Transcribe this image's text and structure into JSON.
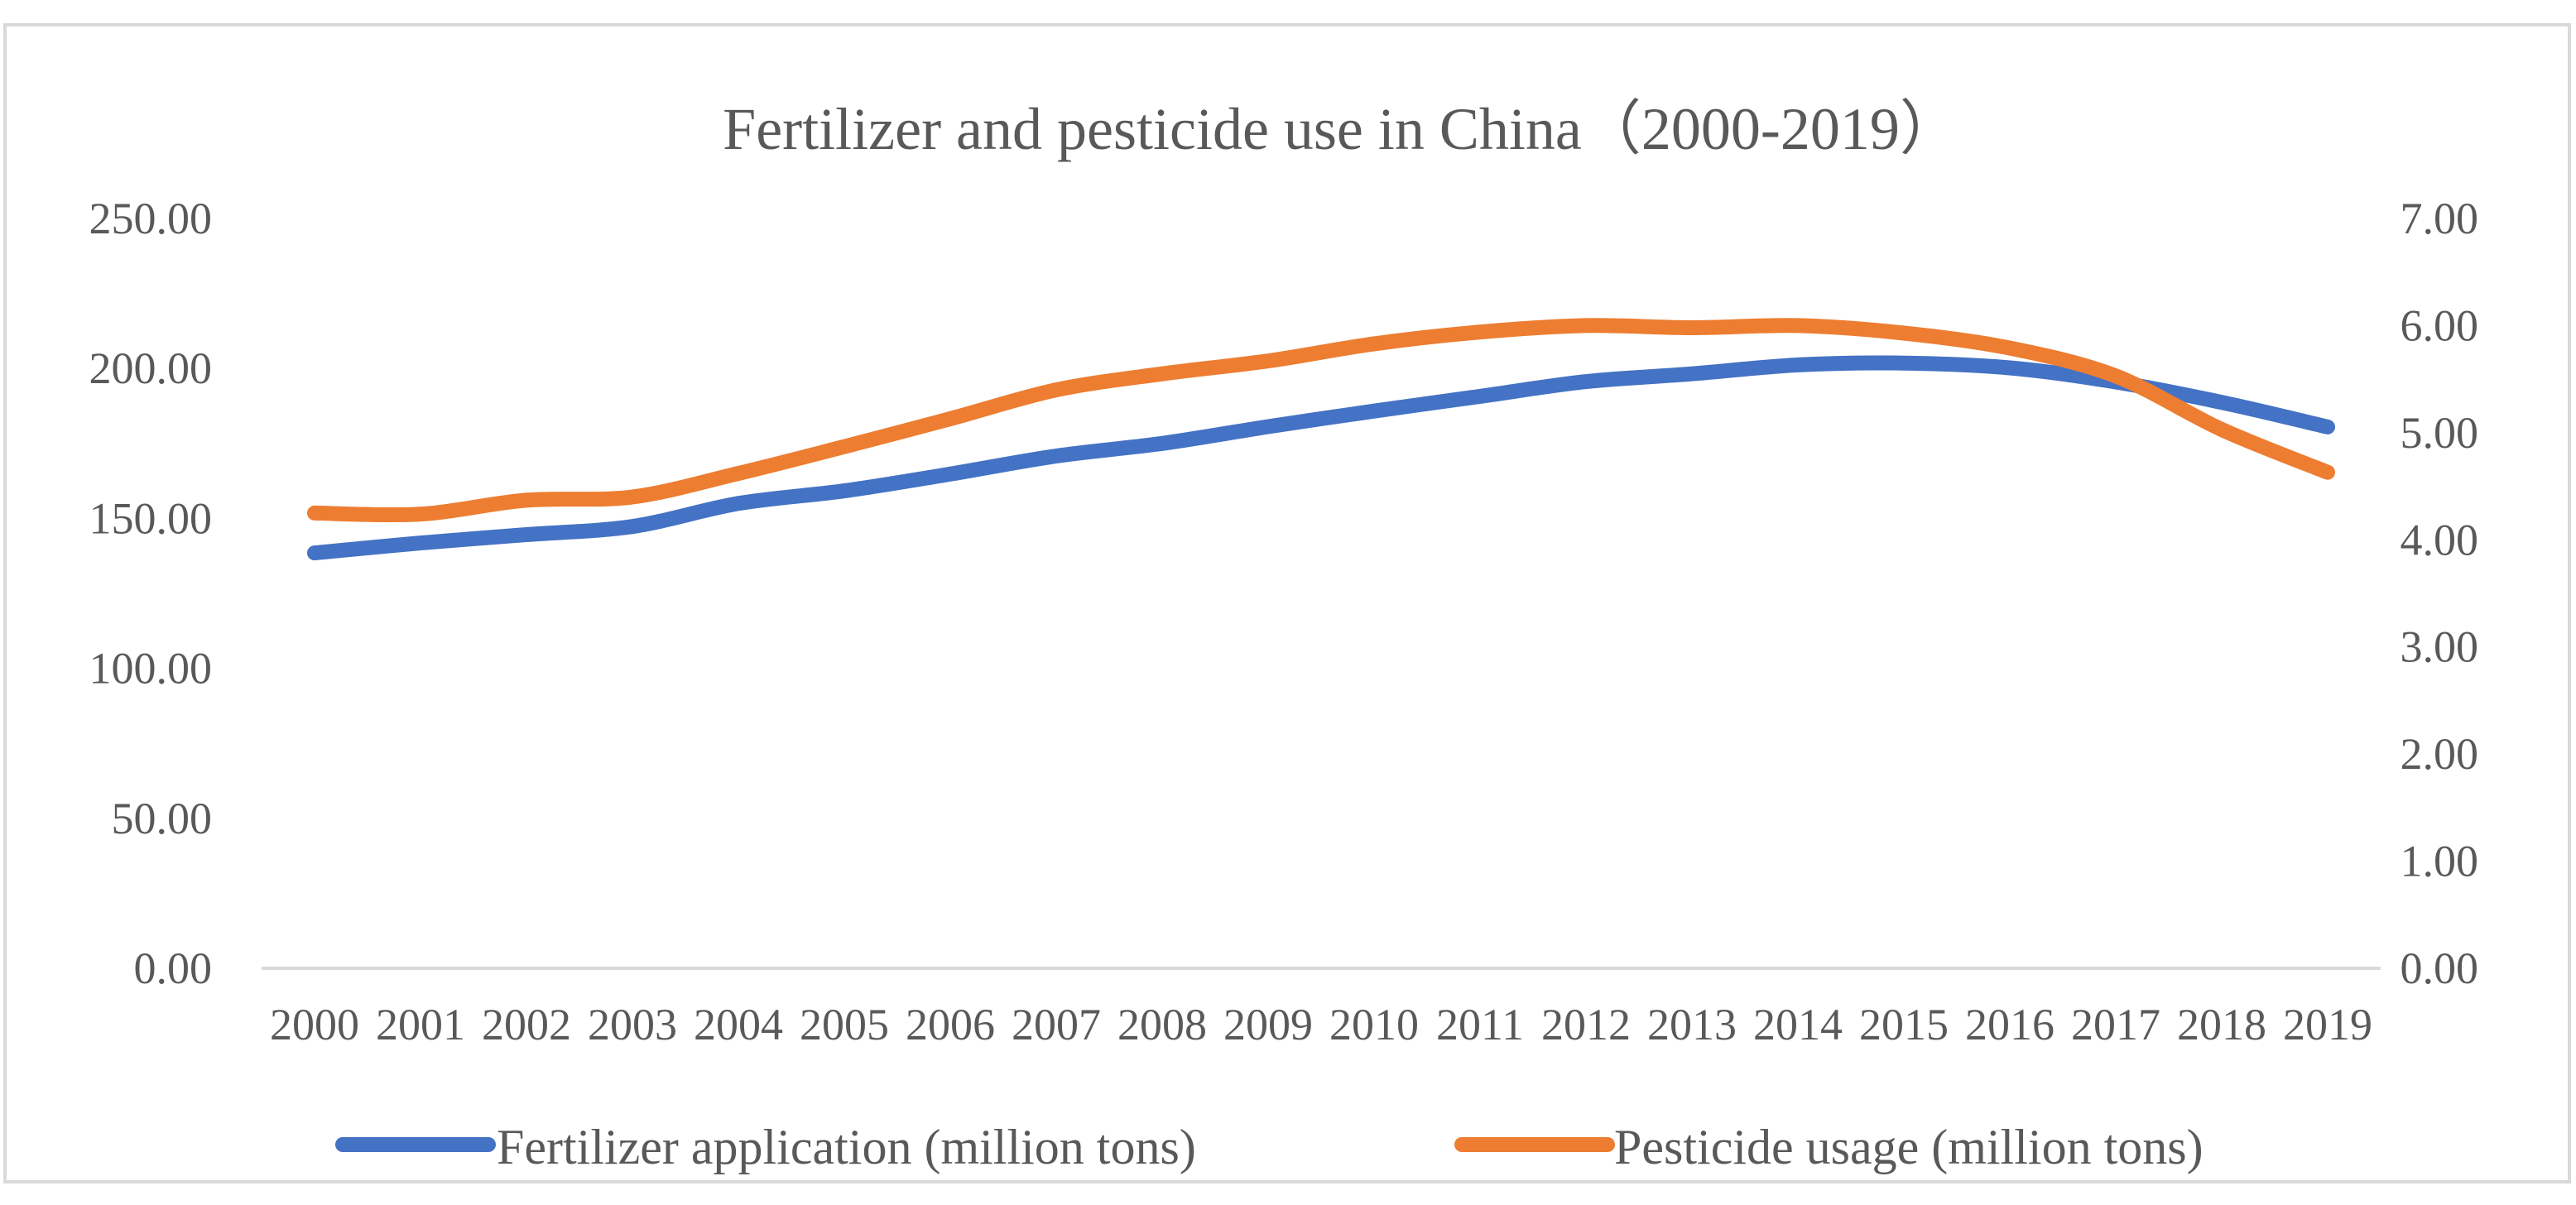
{
  "chart_data": {
    "type": "line",
    "title": "Fertilizer and pesticide use in China（2000-2019）",
    "categories": [
      "2000",
      "2001",
      "2002",
      "2003",
      "2004",
      "2005",
      "2006",
      "2007",
      "2008",
      "2009",
      "2010",
      "2011",
      "2012",
      "2013",
      "2014",
      "2015",
      "2016",
      "2017",
      "2018",
      "2019"
    ],
    "y_left": {
      "range": [
        0,
        250
      ],
      "ticks": [
        "0.00",
        "50.00",
        "100.00",
        "150.00",
        "200.00",
        "250.00"
      ]
    },
    "y_right": {
      "range": [
        0,
        7
      ],
      "ticks": [
        "0.00",
        "1.00",
        "2.00",
        "3.00",
        "4.00",
        "5.00",
        "6.00",
        "7.00"
      ]
    },
    "gridlines": false,
    "legend": "bottom",
    "series": [
      {
        "name": "Fertilizer application (million tons)",
        "axis": "left",
        "color": "#4472C4",
        "values": [
          138.5,
          141.8,
          144.6,
          147.3,
          155.0,
          159.2,
          164.8,
          170.8,
          175.0,
          180.6,
          185.8,
          190.7,
          195.6,
          198.2,
          201.2,
          201.8,
          200.2,
          195.5,
          188.7,
          180.5
        ]
      },
      {
        "name": "Pesticide usage (million tons)",
        "axis": "right",
        "color": "#ED7D31",
        "values": [
          4.25,
          4.24,
          4.37,
          4.4,
          4.62,
          4.87,
          5.13,
          5.4,
          5.55,
          5.67,
          5.83,
          5.94,
          6.0,
          5.98,
          6.0,
          5.93,
          5.79,
          5.53,
          5.03,
          4.63
        ]
      }
    ]
  }
}
